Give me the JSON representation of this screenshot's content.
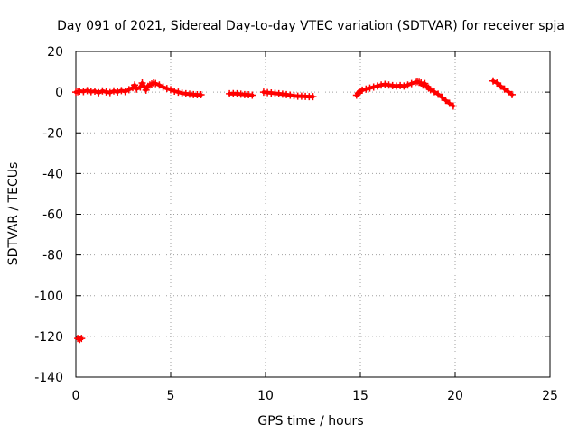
{
  "chart_data": {
    "type": "scatter",
    "title": "Day 091 of 2021, Sidereal Day-to-day VTEC variation (SDTVAR) for receiver spja",
    "xlabel": "GPS time / hours",
    "ylabel": "SDTVAR / TECUs",
    "xlim": [
      0,
      25
    ],
    "ylim": [
      -140,
      20
    ],
    "xticks": [
      0,
      5,
      10,
      15,
      20,
      25
    ],
    "yticks": [
      -140,
      -120,
      -100,
      -80,
      -60,
      -40,
      -20,
      0,
      20
    ],
    "grid": true,
    "legend": "none",
    "marker_color": "#ff0000",
    "marker": "plus",
    "series": [
      {
        "segments": [
          [
            [
              0.0,
              0
            ],
            [
              0.1,
              0.2
            ],
            [
              0.2,
              0.5
            ],
            [
              0.4,
              0.3
            ],
            [
              0.6,
              0.8
            ],
            [
              0.8,
              0.2
            ],
            [
              1.0,
              0.5
            ],
            [
              1.2,
              -0.3
            ],
            [
              1.4,
              0.6
            ],
            [
              1.6,
              0.1
            ],
            [
              1.8,
              -0.2
            ],
            [
              2.0,
              0.6
            ],
            [
              2.2,
              0.1
            ],
            [
              2.4,
              0.8
            ],
            [
              2.6,
              0.3
            ],
            [
              2.8,
              1.2
            ],
            [
              3.0,
              2.2
            ],
            [
              3.1,
              3.5
            ],
            [
              3.2,
              1.5
            ],
            [
              3.4,
              2.5
            ],
            [
              3.5,
              4.5
            ],
            [
              3.6,
              3.0
            ],
            [
              3.7,
              1.0
            ],
            [
              3.8,
              2.8
            ],
            [
              3.9,
              3.5
            ],
            [
              4.0,
              4.0
            ],
            [
              4.1,
              4.5
            ],
            [
              4.2,
              4.2
            ],
            [
              4.4,
              3.5
            ],
            [
              4.6,
              2.5
            ],
            [
              4.8,
              1.8
            ],
            [
              5.0,
              1.2
            ],
            [
              5.2,
              0.5
            ],
            [
              5.4,
              0.0
            ],
            [
              5.6,
              -0.5
            ],
            [
              5.8,
              -0.8
            ],
            [
              6.0,
              -1.0
            ],
            [
              6.2,
              -1.2
            ],
            [
              6.4,
              -1.3
            ],
            [
              6.6,
              -1.3
            ]
          ],
          [
            [
              8.1,
              -0.8
            ],
            [
              8.3,
              -0.7
            ],
            [
              8.5,
              -0.8
            ],
            [
              8.7,
              -1.0
            ],
            [
              8.9,
              -1.2
            ],
            [
              9.1,
              -1.3
            ],
            [
              9.3,
              -1.5
            ]
          ],
          [
            [
              9.9,
              0
            ],
            [
              10.1,
              -0.2
            ],
            [
              10.3,
              -0.4
            ],
            [
              10.5,
              -0.6
            ],
            [
              10.7,
              -0.8
            ],
            [
              10.9,
              -1.0
            ],
            [
              11.1,
              -1.2
            ],
            [
              11.3,
              -1.5
            ],
            [
              11.5,
              -1.8
            ],
            [
              11.7,
              -2.0
            ],
            [
              11.9,
              -2.0
            ],
            [
              12.1,
              -2.1
            ],
            [
              12.3,
              -2.2
            ],
            [
              12.5,
              -2.2
            ]
          ],
          [
            [
              14.8,
              -1.5
            ],
            [
              14.9,
              -0.5
            ],
            [
              15.0,
              0.5
            ],
            [
              15.1,
              1.0
            ],
            [
              15.3,
              1.5
            ],
            [
              15.5,
              2.0
            ],
            [
              15.7,
              2.5
            ],
            [
              15.9,
              3.0
            ],
            [
              16.1,
              3.5
            ],
            [
              16.3,
              3.8
            ],
            [
              16.5,
              3.5
            ],
            [
              16.7,
              3.2
            ],
            [
              16.9,
              3.0
            ],
            [
              17.1,
              3.2
            ],
            [
              17.3,
              3.0
            ],
            [
              17.5,
              3.5
            ],
            [
              17.7,
              4.2
            ],
            [
              17.9,
              4.8
            ],
            [
              18.0,
              5.2
            ],
            [
              18.1,
              4.8
            ],
            [
              18.2,
              4.5
            ],
            [
              18.3,
              3.5
            ],
            [
              18.4,
              4.2
            ],
            [
              18.5,
              2.8
            ],
            [
              18.6,
              2.0
            ],
            [
              18.7,
              1.2
            ],
            [
              18.9,
              0.2
            ],
            [
              19.1,
              -1.0
            ],
            [
              19.3,
              -2.5
            ],
            [
              19.5,
              -4.0
            ],
            [
              19.7,
              -5.5
            ],
            [
              19.9,
              -6.8
            ]
          ],
          [
            [
              22.0,
              5.5
            ],
            [
              22.2,
              4.5
            ],
            [
              22.4,
              3.0
            ],
            [
              22.6,
              1.5
            ],
            [
              22.8,
              0.2
            ],
            [
              23.0,
              -1.2
            ]
          ],
          [
            [
              0.1,
              -121.0
            ],
            [
              0.2,
              -121.5
            ],
            [
              0.3,
              -121.0
            ]
          ]
        ]
      }
    ]
  }
}
